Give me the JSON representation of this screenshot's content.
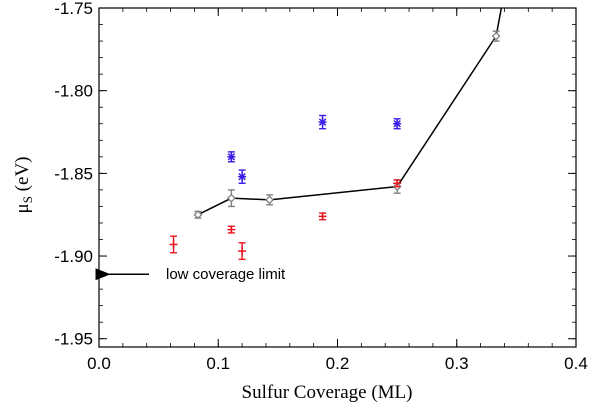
{
  "chart_data": {
    "type": "scatter",
    "xlabel": "Sulfur Coverage (ML)",
    "ylabel_main": "μ",
    "ylabel_sub": "S",
    "ylabel_unit": " (eV)",
    "xlim": [
      0.0,
      0.4
    ],
    "ylim": [
      -1.955,
      -1.75
    ],
    "xticks": [
      0.0,
      0.1,
      0.2,
      0.3,
      0.4
    ],
    "xtick_labels": [
      "0.0",
      "0.1",
      "0.2",
      "0.3",
      "0.4"
    ],
    "yticks": [
      -1.95,
      -1.9,
      -1.85,
      -1.8,
      -1.75
    ],
    "ytick_labels": [
      "-1.95",
      "-1.90",
      "-1.85",
      "-1.80",
      "-1.75"
    ],
    "grid": false,
    "colors": {
      "red": "#e8141e",
      "blue": "#3a1ee6",
      "gray": "#808080",
      "line": "#000000"
    },
    "series": [
      {
        "marker": "diamond",
        "color": "gray",
        "connected": true,
        "points": [
          {
            "x": 0.083,
            "y": -1.875,
            "err": 0.002
          },
          {
            "x": 0.111,
            "y": -1.865,
            "err": 0.005
          },
          {
            "x": 0.143,
            "y": -1.866,
            "err": 0.003
          },
          {
            "x": 0.25,
            "y": -1.858,
            "err": 0.004
          },
          {
            "x": 0.333,
            "y": -1.767,
            "err": 0.003
          }
        ],
        "line_extension": {
          "x": 0.34,
          "y": -1.74
        }
      },
      {
        "marker": "plus",
        "color": "red",
        "connected": false,
        "points": [
          {
            "x": 0.0625,
            "y": -1.893,
            "err": 0.005
          },
          {
            "x": 0.111,
            "y": -1.884,
            "err": 0.002
          },
          {
            "x": 0.12,
            "y": -1.897,
            "err": 0.005
          },
          {
            "x": 0.1875,
            "y": -1.876,
            "err": 0.002
          },
          {
            "x": 0.25,
            "y": -1.856,
            "err": 0.002
          }
        ]
      },
      {
        "marker": "asterisk",
        "color": "blue",
        "connected": false,
        "points": [
          {
            "x": 0.111,
            "y": -1.84,
            "err": 0.003
          },
          {
            "x": 0.12,
            "y": -1.852,
            "err": 0.004
          },
          {
            "x": 0.1875,
            "y": -1.819,
            "err": 0.004
          },
          {
            "x": 0.25,
            "y": -1.82,
            "err": 0.003
          }
        ]
      }
    ],
    "annotations": [
      {
        "text": "low coverage limit",
        "arrow_to_x": 0.0,
        "y": -1.911
      }
    ]
  }
}
